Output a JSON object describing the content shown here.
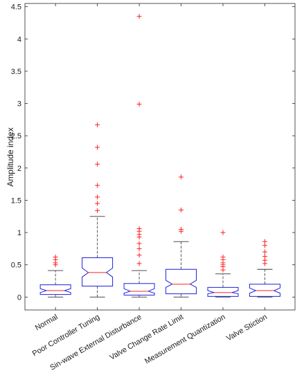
{
  "chart_data": {
    "type": "boxplot",
    "title": "",
    "ylabel": "Amplitude index",
    "xlabel": "",
    "ylim": [
      -0.2,
      4.55
    ],
    "yticks": [
      0,
      0.5,
      1,
      1.5,
      2,
      2.5,
      3,
      3.5,
      4,
      4.5
    ],
    "ytick_labels": [
      "0",
      "0.5",
      "1",
      "1.5",
      "2",
      "2.5",
      "3",
      "3.5",
      "4",
      "4.5"
    ],
    "notched": true,
    "grid": false,
    "colors": {
      "box": "#1f1fe0",
      "median": "#ff2020",
      "whisker": "#333333",
      "outlier": "#ff2020",
      "axis": "#262626"
    },
    "categories": [
      "Normal",
      "Poor Controller Tuning",
      "Sin-wave External Disturbance",
      "Valve Change Rate Limit",
      "Measurement Quantization",
      "Valve Stiction"
    ],
    "boxes": [
      {
        "whisker_low": 0.0,
        "q1": 0.04,
        "notch_low": 0.07,
        "median": 0.1,
        "notch_high": 0.13,
        "q3": 0.19,
        "whisker_high": 0.41,
        "outliers": [
          0.5,
          0.53,
          0.58,
          0.62
        ]
      },
      {
        "whisker_low": 0.0,
        "q1": 0.17,
        "notch_low": 0.31,
        "median": 0.38,
        "notch_high": 0.45,
        "q3": 0.61,
        "whisker_high": 1.25,
        "outliers": [
          1.34,
          1.45,
          1.55,
          1.73,
          2.06,
          2.32,
          2.67
        ]
      },
      {
        "whisker_low": 0.0,
        "q1": 0.03,
        "notch_low": 0.06,
        "median": 0.09,
        "notch_high": 0.13,
        "q3": 0.21,
        "whisker_high": 0.41,
        "outliers": [
          0.52,
          0.65,
          0.75,
          0.83,
          0.93,
          0.97,
          1.02,
          1.06,
          2.99,
          4.35
        ]
      },
      {
        "whisker_low": 0.0,
        "q1": 0.05,
        "notch_low": 0.15,
        "median": 0.2,
        "notch_high": 0.26,
        "q3": 0.43,
        "whisker_high": 0.86,
        "outliers": [
          1.02,
          1.05,
          1.35,
          1.86
        ]
      },
      {
        "whisker_low": 0.0,
        "q1": 0.01,
        "notch_low": 0.05,
        "median": 0.07,
        "notch_high": 0.1,
        "q3": 0.15,
        "whisker_high": 0.36,
        "outliers": [
          0.42,
          0.47,
          0.5,
          0.53,
          0.58,
          0.62,
          1.0
        ]
      },
      {
        "whisker_low": 0.0,
        "q1": 0.01,
        "notch_low": 0.06,
        "median": 0.1,
        "notch_high": 0.14,
        "q3": 0.2,
        "whisker_high": 0.43,
        "outliers": [
          0.52,
          0.57,
          0.63,
          0.7,
          0.8,
          0.86
        ]
      }
    ]
  }
}
